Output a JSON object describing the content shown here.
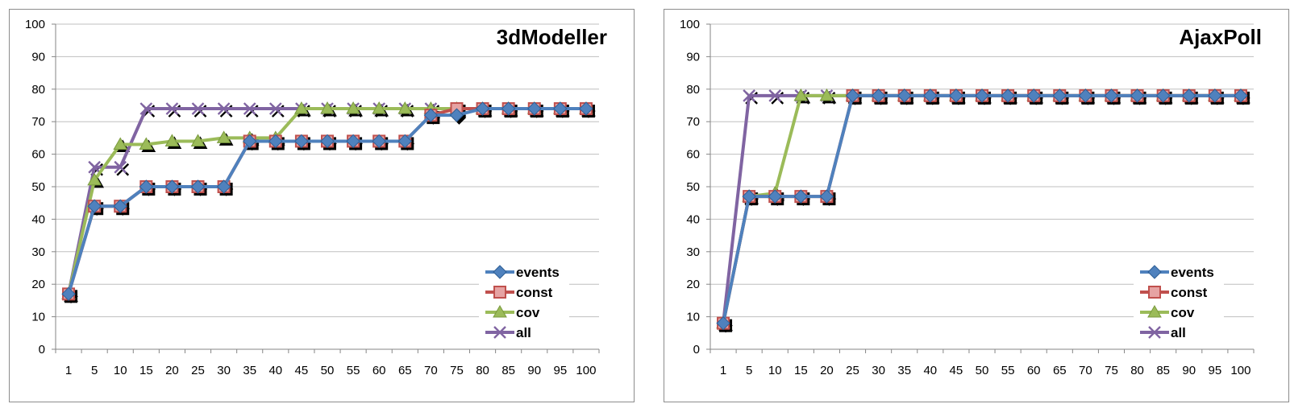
{
  "chart_data": [
    {
      "type": "line",
      "title": "3dModeller",
      "xlabel": "",
      "ylabel": "",
      "categories": [
        "1",
        "5",
        "10",
        "15",
        "20",
        "25",
        "30",
        "35",
        "40",
        "45",
        "50",
        "55",
        "60",
        "65",
        "70",
        "75",
        "80",
        "85",
        "90",
        "95",
        "100"
      ],
      "ylim": [
        0,
        100
      ],
      "yticks": [
        0,
        10,
        20,
        30,
        40,
        50,
        60,
        70,
        80,
        90,
        100
      ],
      "grid": true,
      "legend_position": "bottom-right",
      "series": [
        {
          "name": "events",
          "color": "#4f81bd",
          "marker": "diamond",
          "values": [
            17,
            44,
            44,
            50,
            50,
            50,
            50,
            64,
            64,
            64,
            64,
            64,
            64,
            64,
            72,
            72,
            74,
            74,
            74,
            74,
            74
          ]
        },
        {
          "name": "const",
          "color": "#c0504d",
          "marker": "square",
          "values": [
            17,
            44,
            44,
            50,
            50,
            50,
            50,
            64,
            64,
            64,
            64,
            64,
            64,
            64,
            72,
            74,
            74,
            74,
            74,
            74,
            74
          ]
        },
        {
          "name": "cov",
          "color": "#9bbb59",
          "marker": "triangle",
          "values": [
            17,
            52,
            63,
            63,
            64,
            64,
            65,
            65,
            65,
            74,
            74,
            74,
            74,
            74,
            74,
            74,
            74,
            74,
            74,
            74,
            74
          ]
        },
        {
          "name": "all",
          "color": "#8064a2",
          "marker": "x",
          "values": [
            17,
            56,
            56,
            74,
            74,
            74,
            74,
            74,
            74,
            74,
            74,
            74,
            74,
            74,
            74,
            74,
            74,
            74,
            74,
            74,
            74
          ]
        }
      ]
    },
    {
      "type": "line",
      "title": "AjaxPoll",
      "xlabel": "",
      "ylabel": "",
      "categories": [
        "1",
        "5",
        "10",
        "15",
        "20",
        "25",
        "30",
        "35",
        "40",
        "45",
        "50",
        "55",
        "60",
        "65",
        "70",
        "75",
        "80",
        "85",
        "90",
        "95",
        "100"
      ],
      "ylim": [
        0,
        100
      ],
      "yticks": [
        0,
        10,
        20,
        30,
        40,
        50,
        60,
        70,
        80,
        90,
        100
      ],
      "grid": true,
      "legend_position": "bottom-right",
      "series": [
        {
          "name": "events",
          "color": "#4f81bd",
          "marker": "diamond",
          "values": [
            8,
            47,
            47,
            47,
            47,
            78,
            78,
            78,
            78,
            78,
            78,
            78,
            78,
            78,
            78,
            78,
            78,
            78,
            78,
            78,
            78
          ]
        },
        {
          "name": "const",
          "color": "#c0504d",
          "marker": "square",
          "values": [
            8,
            47,
            47,
            47,
            47,
            78,
            78,
            78,
            78,
            78,
            78,
            78,
            78,
            78,
            78,
            78,
            78,
            78,
            78,
            78,
            78
          ]
        },
        {
          "name": "cov",
          "color": "#9bbb59",
          "marker": "triangle",
          "values": [
            8,
            47,
            48,
            78,
            78,
            78,
            78,
            78,
            78,
            78,
            78,
            78,
            78,
            78,
            78,
            78,
            78,
            78,
            78,
            78,
            78
          ]
        },
        {
          "name": "all",
          "color": "#8064a2",
          "marker": "x",
          "values": [
            8,
            78,
            78,
            78,
            78,
            78,
            78,
            78,
            78,
            78,
            78,
            78,
            78,
            78,
            78,
            78,
            78,
            78,
            78,
            78,
            78
          ]
        }
      ]
    }
  ]
}
